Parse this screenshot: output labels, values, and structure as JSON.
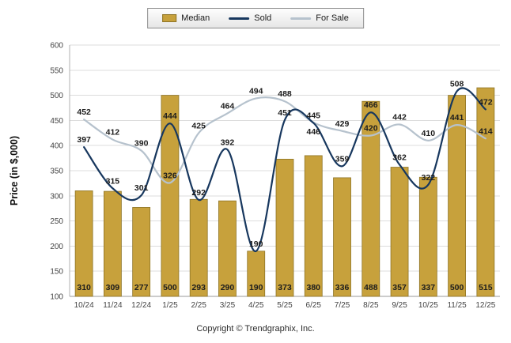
{
  "legend": {
    "items": [
      {
        "label": "Median",
        "type": "bar",
        "color": "#C7A13C",
        "border": "#8E7426"
      },
      {
        "label": "Sold",
        "type": "line",
        "color": "#17375E"
      },
      {
        "label": "For Sale",
        "type": "line",
        "color": "#B6C2CD"
      }
    ]
  },
  "footer": "Copyright © Trendgraphix, Inc.",
  "chart_data": {
    "type": "bar+line",
    "title": "",
    "ylabel": "Price (in $,000)",
    "ylim": [
      100,
      600
    ],
    "ytick_step": 50,
    "grid": true,
    "legend_position": "top-center",
    "categories": [
      "10/24",
      "11/24",
      "12/24",
      "1/25",
      "2/25",
      "3/25",
      "4/25",
      "5/25",
      "6/25",
      "7/25",
      "8/25",
      "9/25",
      "10/25",
      "11/25",
      "12/25"
    ],
    "series": [
      {
        "name": "Median",
        "type": "bar",
        "color": "#C7A13C",
        "border": "#8E7426",
        "values": [
          310,
          309,
          277,
          500,
          293,
          290,
          190,
          373,
          380,
          336,
          488,
          357,
          337,
          500,
          515
        ]
      },
      {
        "name": "Sold",
        "type": "line",
        "color": "#17375E",
        "values": [
          397,
          315,
          301,
          444,
          292,
          392,
          190,
          451,
          445,
          359,
          466,
          362,
          322,
          508,
          472
        ]
      },
      {
        "name": "For Sale",
        "type": "line",
        "color": "#B6C2CD",
        "values": [
          452,
          412,
          390,
          326,
          425,
          464,
          494,
          488,
          446,
          429,
          420,
          442,
          410,
          441,
          414
        ]
      }
    ]
  }
}
